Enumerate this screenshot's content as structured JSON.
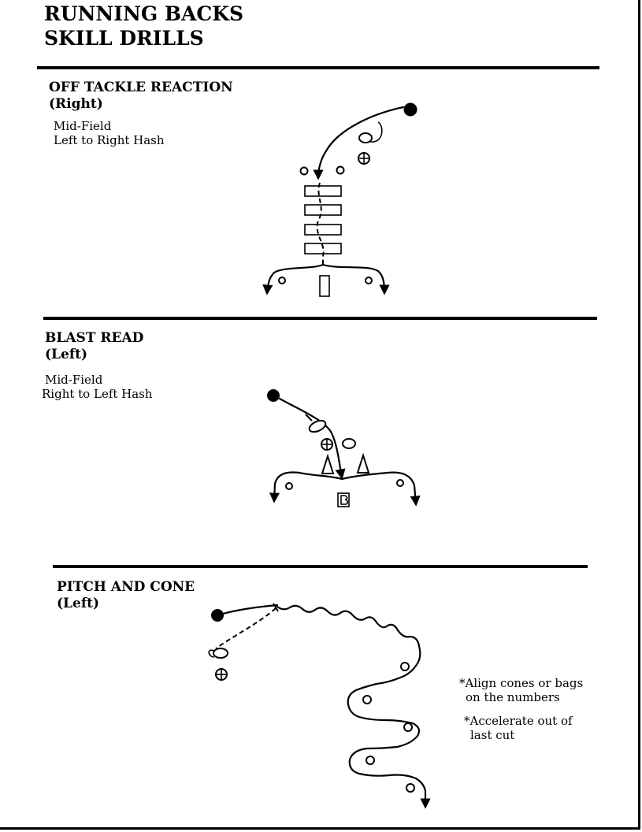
{
  "header": {
    "line1": "RUNNING BACKS",
    "line2": "SKILL DRILLS"
  },
  "drills": [
    {
      "title": "OFF TACKLE REACTION",
      "side": "(Right)",
      "notes": [
        "Mid-Field",
        "Left to Right Hash"
      ]
    },
    {
      "title": "BLAST READ",
      "side": "(Left)",
      "notes": [
        "Mid-Field",
        "Right to Left Hash"
      ]
    },
    {
      "title": "PITCH AND CONE",
      "side": "(Left)",
      "notes": [
        "*Align cones or bags",
        "on the numbers",
        "*Accelerate out of",
        "last cut"
      ]
    }
  ]
}
